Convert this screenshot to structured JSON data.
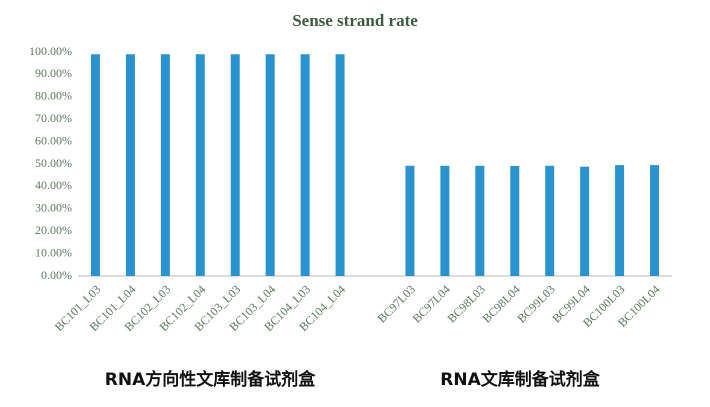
{
  "chart_data": {
    "type": "bar",
    "title": "Sense strand rate",
    "categories": [
      "BC101_L03",
      "BC101_L04",
      "BC102_L03",
      "BC102_L04",
      "BC103_L03",
      "BC103_L04",
      "BC104_L03",
      "BC104_L04",
      null,
      "BC97L03",
      "BC97L04",
      "BC98L03",
      "BC98L04",
      "BC99L03",
      "BC99L04",
      "BC100L03",
      "BC100L04"
    ],
    "values": [
      99,
      99,
      99,
      99,
      99,
      99,
      99,
      99,
      null,
      49.2,
      49.2,
      49.2,
      49.1,
      49.2,
      48.8,
      49.5,
      49.5
    ],
    "color": "#2a93cf",
    "ylim": [
      0,
      100
    ],
    "yticks": [
      {
        "value": 0,
        "label": "0.00%"
      },
      {
        "value": 10,
        "label": "10.00%"
      },
      {
        "value": 20,
        "label": "20.00%"
      },
      {
        "value": 30,
        "label": "30.00%"
      },
      {
        "value": 40,
        "label": "40.00%"
      },
      {
        "value": 50,
        "label": "50.00%"
      },
      {
        "value": 60,
        "label": "60.00%"
      },
      {
        "value": 70,
        "label": "70.00%"
      },
      {
        "value": 80,
        "label": "80.00%"
      },
      {
        "value": 90,
        "label": "90.00%"
      },
      {
        "value": 100,
        "label": "100.00%"
      }
    ],
    "grid": false,
    "group_labels": [
      "RNA方向性文库制备试剂盒",
      "RNA文库制备试剂盒"
    ]
  }
}
